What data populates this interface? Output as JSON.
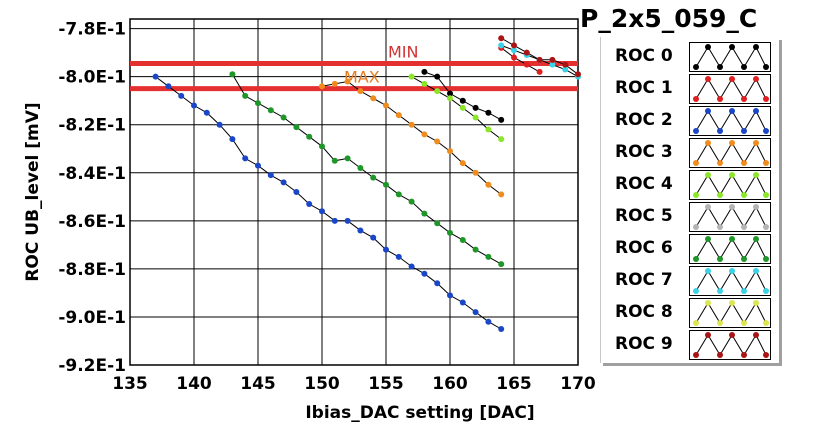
{
  "panel_title": "P_2x5_059_C",
  "chart_data": {
    "type": "line",
    "xlabel": "Ibias_DAC setting [DAC]",
    "ylabel": "ROC UB_level [mV]",
    "xlim": [
      135,
      170
    ],
    "ylim": [
      -0.92,
      -0.776
    ],
    "xticks": [
      135,
      140,
      145,
      150,
      155,
      160,
      165,
      170
    ],
    "xtick_labels": [
      "135",
      "140",
      "145",
      "150",
      "155",
      "160",
      "165",
      "170"
    ],
    "yticks": [
      -0.78,
      -0.8,
      -0.82,
      -0.84,
      -0.86,
      -0.88,
      -0.9,
      -0.92
    ],
    "ytick_labels": [
      "-7.8E-1",
      "-8.0E-1",
      "-8.2E-1",
      "-8.4E-1",
      "-8.6E-1",
      "-8.8E-1",
      "-9.0E-1",
      "-9.2E-1"
    ],
    "grid": true,
    "hlines": [
      {
        "label": "MIN",
        "y": -0.7945,
        "color": "#e53030"
      },
      {
        "label": "MAX",
        "y": -0.805,
        "color": "#e53030"
      }
    ],
    "legend_position": "right",
    "series": [
      {
        "name": "ROC 0",
        "color": "#000000",
        "x": [
          158,
          159,
          160,
          161,
          162,
          163,
          164
        ],
        "y": [
          -0.798,
          -0.8,
          -0.807,
          -0.81,
          -0.813,
          -0.815,
          -0.818
        ]
      },
      {
        "name": "ROC 1",
        "color": "#e02020",
        "x": [
          164,
          165,
          166,
          167
        ],
        "y": [
          -0.788,
          -0.792,
          -0.795,
          -0.798
        ]
      },
      {
        "name": "ROC 2",
        "color": "#1a46c8",
        "x": [
          137,
          138,
          139,
          140,
          141,
          142,
          143,
          144,
          145,
          146,
          147,
          148,
          149,
          150,
          151,
          152,
          153,
          154,
          155,
          156,
          157,
          158,
          159,
          160,
          161,
          162,
          163,
          164
        ],
        "y": [
          -0.8,
          -0.804,
          -0.808,
          -0.812,
          -0.815,
          -0.82,
          -0.826,
          -0.834,
          -0.837,
          -0.841,
          -0.844,
          -0.848,
          -0.853,
          -0.856,
          -0.86,
          -0.86,
          -0.864,
          -0.867,
          -0.872,
          -0.875,
          -0.879,
          -0.882,
          -0.886,
          -0.891,
          -0.894,
          -0.898,
          -0.902,
          -0.905
        ]
      },
      {
        "name": "ROC 3",
        "color": "#f08c1e",
        "x": [
          150,
          151,
          152,
          153,
          154,
          155,
          156,
          157,
          158,
          159,
          160,
          161,
          162,
          163,
          164
        ],
        "y": [
          -0.804,
          -0.803,
          -0.802,
          -0.806,
          -0.809,
          -0.812,
          -0.816,
          -0.82,
          -0.824,
          -0.827,
          -0.831,
          -0.836,
          -0.84,
          -0.845,
          -0.849
        ]
      },
      {
        "name": "ROC 4",
        "color": "#8ce628",
        "x": [
          157,
          158,
          159,
          160,
          161,
          162,
          163,
          164
        ],
        "y": [
          -0.8,
          -0.803,
          -0.806,
          -0.809,
          -0.813,
          -0.817,
          -0.822,
          -0.826
        ]
      },
      {
        "name": "ROC 5",
        "color": "#b4b4b4",
        "x": [],
        "y": []
      },
      {
        "name": "ROC 6",
        "color": "#1e9628",
        "x": [
          143,
          144,
          145,
          146,
          147,
          148,
          149,
          150,
          151,
          152,
          153,
          154,
          155,
          156,
          157,
          158,
          159,
          160,
          161,
          162,
          163,
          164
        ],
        "y": [
          -0.799,
          -0.808,
          -0.811,
          -0.814,
          -0.817,
          -0.821,
          -0.825,
          -0.829,
          -0.835,
          -0.834,
          -0.838,
          -0.842,
          -0.845,
          -0.849,
          -0.852,
          -0.857,
          -0.861,
          -0.865,
          -0.868,
          -0.872,
          -0.875,
          -0.878
        ]
      },
      {
        "name": "ROC 7",
        "color": "#3cd2e6",
        "x": [
          164,
          165,
          166,
          167,
          168,
          169,
          170
        ],
        "y": [
          -0.787,
          -0.789,
          -0.791,
          -0.793,
          -0.795,
          -0.797,
          -0.8
        ]
      },
      {
        "name": "ROC 8",
        "color": "#dce650",
        "x": [],
        "y": []
      },
      {
        "name": "ROC 9",
        "color": "#aa1414",
        "x": [
          164,
          165,
          166,
          167,
          168,
          169,
          170
        ],
        "y": [
          -0.784,
          -0.787,
          -0.79,
          -0.793,
          -0.793,
          -0.795,
          -0.799
        ]
      }
    ]
  }
}
